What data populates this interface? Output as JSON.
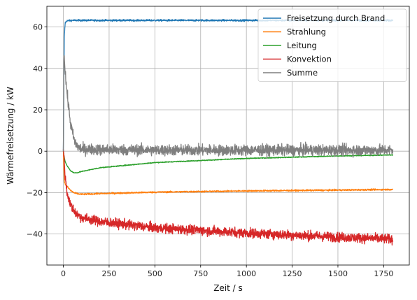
{
  "chart_data": {
    "type": "line",
    "title": "",
    "xlabel": "Zeit / s",
    "ylabel": "Wärmefreisetzung / kW",
    "xlim": [
      -90,
      1890
    ],
    "ylim": [
      -55,
      70
    ],
    "xticks": [
      0,
      250,
      500,
      750,
      1000,
      1250,
      1500,
      1750
    ],
    "yticks": [
      -40,
      -20,
      0,
      20,
      40,
      60
    ],
    "grid": true,
    "legend_position": "top-right",
    "series": [
      {
        "name": "Freisetzung durch Brand",
        "color": "#1f77b4",
        "noise": 0.4,
        "x": [
          0,
          5,
          10,
          20,
          50,
          100,
          300,
          600,
          1000,
          1400,
          1800
        ],
        "y": [
          0,
          55,
          62,
          63,
          63.2,
          63.2,
          63.2,
          63.2,
          63.2,
          63.2,
          63.2
        ]
      },
      {
        "name": "Strahlung",
        "color": "#ff7f0e",
        "noise": 0.35,
        "x": [
          0,
          5,
          10,
          20,
          40,
          60,
          80,
          100,
          200,
          500,
          1000,
          1500,
          1800
        ],
        "y": [
          0,
          -14,
          -16,
          -17,
          -19,
          -20.2,
          -20.6,
          -20.8,
          -20.5,
          -19.8,
          -19.2,
          -18.8,
          -18.5
        ]
      },
      {
        "name": "Leitung",
        "color": "#2ca02c",
        "noise": 0.2,
        "x": [
          0,
          5,
          10,
          20,
          40,
          60,
          80,
          100,
          200,
          500,
          1000,
          1500,
          1800
        ],
        "y": [
          0,
          -3,
          -5,
          -7,
          -9.5,
          -10.5,
          -10.3,
          -9.8,
          -8,
          -5.5,
          -3.5,
          -2.3,
          -1.8
        ]
      },
      {
        "name": "Konvektion",
        "color": "#d62728",
        "noise": 2.2,
        "x": [
          0,
          5,
          10,
          20,
          40,
          60,
          80,
          100,
          200,
          500,
          1000,
          1500,
          1800
        ],
        "y": [
          1,
          -5,
          -12,
          -20,
          -26,
          -29,
          -31,
          -32,
          -34,
          -37,
          -39.5,
          -41.5,
          -42.5
        ]
      },
      {
        "name": "Summe",
        "color": "#7f7f7f",
        "noise": 2.5,
        "x": [
          0,
          3,
          5,
          8,
          15,
          25,
          40,
          60,
          80,
          100,
          200,
          500,
          1000,
          1500,
          1800
        ],
        "y": [
          0,
          44,
          46,
          42,
          33,
          24,
          13,
          5,
          2,
          1,
          0.8,
          0.5,
          0.5,
          0.5,
          0.5
        ]
      }
    ]
  }
}
